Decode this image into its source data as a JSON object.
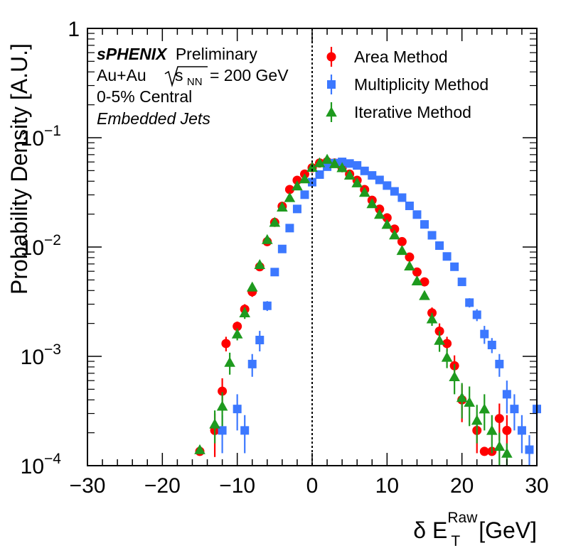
{
  "chart_data": {
    "type": "scatter",
    "xlabel": "δ E_T^Raw [GeV]",
    "xlabel_parts": {
      "prefix": "δ E",
      "sub": "T",
      "sup": "Raw",
      "suffix": "[GeV]"
    },
    "ylabel": "Probability Density [A.U.]",
    "xlim": [
      -30,
      30
    ],
    "ylim": [
      0.0001,
      1
    ],
    "yscale": "log",
    "grid": false,
    "legend_position": "top-right",
    "x_ticks": [
      "−30",
      "−20",
      "−10",
      "0",
      "10",
      "20",
      "30"
    ],
    "y_ticks": [
      {
        "value": 1,
        "base": "1",
        "exp": ""
      },
      {
        "value": 0.1,
        "base": "10",
        "exp": "−1"
      },
      {
        "value": 0.01,
        "base": "10",
        "exp": "−2"
      },
      {
        "value": 0.001,
        "base": "10",
        "exp": "−3"
      },
      {
        "value": 0.0001,
        "base": "10",
        "exp": "−4"
      }
    ],
    "reference_line_x": 0,
    "annotations": {
      "experiment": "sPHENIX",
      "status": "Preliminary",
      "system_prefix": "Au+Au",
      "energy_s": "s",
      "energy_sub": "NN",
      "energy_value": "= 200 GeV",
      "centrality": "0-5% Central",
      "sample": "Embedded Jets"
    },
    "series": [
      {
        "name": "Area Method",
        "color": "#ff0000",
        "marker": "circle",
        "points": [
          {
            "x": -15,
            "y": 0.000135,
            "err": 1e-05
          },
          {
            "x": -13,
            "y": 0.00021,
            "err": 9e-05
          },
          {
            "x": -12,
            "y": 0.00048,
            "err": 0.00015
          },
          {
            "x": -11.5,
            "y": 0.00131,
            "err": 0.0002
          },
          {
            "x": -10,
            "y": 0.00188,
            "err": 0.0002
          },
          {
            "x": -9,
            "y": 0.0027,
            "err": 0.0003
          },
          {
            "x": -8,
            "y": 0.0039,
            "err": 0.0004
          },
          {
            "x": -7,
            "y": 0.0066,
            "err": 0.0005
          },
          {
            "x": -6,
            "y": 0.0112,
            "err": 0.0005
          },
          {
            "x": -5,
            "y": 0.0168,
            "err": 0.0006
          },
          {
            "x": -4,
            "y": 0.0236,
            "err": 0.0007
          },
          {
            "x": -3,
            "y": 0.0336,
            "err": 0.0008
          },
          {
            "x": -2,
            "y": 0.0408,
            "err": 0.0009
          },
          {
            "x": -1,
            "y": 0.0465,
            "err": 0.0009
          },
          {
            "x": 0,
            "y": 0.0531,
            "err": 0.001
          },
          {
            "x": 1,
            "y": 0.0587,
            "err": 0.001
          },
          {
            "x": 2,
            "y": 0.0604,
            "err": 0.001
          },
          {
            "x": 3,
            "y": 0.0587,
            "err": 0.001
          },
          {
            "x": 4,
            "y": 0.0531,
            "err": 0.001
          },
          {
            "x": 5,
            "y": 0.0465,
            "err": 0.0009
          },
          {
            "x": 6,
            "y": 0.0408,
            "err": 0.0009
          },
          {
            "x": 7,
            "y": 0.0336,
            "err": 0.0008
          },
          {
            "x": 8,
            "y": 0.0268,
            "err": 0.0007
          },
          {
            "x": 9,
            "y": 0.0222,
            "err": 0.0007
          },
          {
            "x": 10,
            "y": 0.0185,
            "err": 0.0006
          },
          {
            "x": 11,
            "y": 0.0146,
            "err": 0.0006
          },
          {
            "x": 12,
            "y": 0.0112,
            "err": 0.0005
          },
          {
            "x": 13,
            "y": 0.0081,
            "err": 0.0005
          },
          {
            "x": 14,
            "y": 0.0059,
            "err": 0.0004
          },
          {
            "x": 15,
            "y": 0.0048,
            "err": 0.0004
          },
          {
            "x": 16,
            "y": 0.0025,
            "err": 0.0003
          },
          {
            "x": 17,
            "y": 0.0017,
            "err": 0.0003
          },
          {
            "x": 18,
            "y": 0.00131,
            "err": 0.0002
          },
          {
            "x": 19,
            "y": 0.00082,
            "err": 0.0002
          },
          {
            "x": 20,
            "y": 0.0004,
            "err": 0.00015
          },
          {
            "x": 22,
            "y": 0.00021,
            "err": 8e-05
          },
          {
            "x": 23,
            "y": 0.000135,
            "err": 1e-05
          },
          {
            "x": 24,
            "y": 0.000135,
            "err": 1e-05
          },
          {
            "x": 25,
            "y": 0.00027,
            "err": 0.0001
          },
          {
            "x": 26,
            "y": 0.00021,
            "err": 8e-05
          }
        ]
      },
      {
        "name": "Multiplicity Method",
        "color": "#3c78ff",
        "marker": "square",
        "points": [
          {
            "x": -12,
            "y": 0.00021,
            "err": 8e-05
          },
          {
            "x": -10,
            "y": 0.00033,
            "err": 0.00012
          },
          {
            "x": -9,
            "y": 0.00021,
            "err": 8e-05
          },
          {
            "x": -8,
            "y": 0.00085,
            "err": 0.0002
          },
          {
            "x": -7,
            "y": 0.00141,
            "err": 0.0003
          },
          {
            "x": -6,
            "y": 0.0029,
            "err": 0.0003
          },
          {
            "x": -5,
            "y": 0.0059,
            "err": 0.0004
          },
          {
            "x": -4,
            "y": 0.0096,
            "err": 0.0005
          },
          {
            "x": -3,
            "y": 0.0149,
            "err": 0.0006
          },
          {
            "x": -2,
            "y": 0.0223,
            "err": 0.0007
          },
          {
            "x": -1,
            "y": 0.0301,
            "err": 0.0008
          },
          {
            "x": 0,
            "y": 0.0392,
            "err": 0.0009
          },
          {
            "x": 1,
            "y": 0.046,
            "err": 0.0009
          },
          {
            "x": 2,
            "y": 0.0543,
            "err": 0.001
          },
          {
            "x": 3,
            "y": 0.0586,
            "err": 0.001
          },
          {
            "x": 4,
            "y": 0.0601,
            "err": 0.001
          },
          {
            "x": 5,
            "y": 0.0581,
            "err": 0.001
          },
          {
            "x": 6,
            "y": 0.0558,
            "err": 0.001
          },
          {
            "x": 7,
            "y": 0.0497,
            "err": 0.0009
          },
          {
            "x": 8,
            "y": 0.0452,
            "err": 0.0009
          },
          {
            "x": 9,
            "y": 0.0411,
            "err": 0.0009
          },
          {
            "x": 10,
            "y": 0.0365,
            "err": 0.0008
          },
          {
            "x": 11,
            "y": 0.0323,
            "err": 0.0008
          },
          {
            "x": 12,
            "y": 0.0283,
            "err": 0.0007
          },
          {
            "x": 13,
            "y": 0.0238,
            "err": 0.0007
          },
          {
            "x": 14,
            "y": 0.0198,
            "err": 0.0006
          },
          {
            "x": 15,
            "y": 0.0161,
            "err": 0.0006
          },
          {
            "x": 16,
            "y": 0.0128,
            "err": 0.0005
          },
          {
            "x": 17,
            "y": 0.0103,
            "err": 0.0005
          },
          {
            "x": 18,
            "y": 0.0082,
            "err": 0.0005
          },
          {
            "x": 19,
            "y": 0.0066,
            "err": 0.0004
          },
          {
            "x": 20,
            "y": 0.0048,
            "err": 0.0004
          },
          {
            "x": 21,
            "y": 0.0031,
            "err": 0.0003
          },
          {
            "x": 22,
            "y": 0.0024,
            "err": 0.0003
          },
          {
            "x": 23,
            "y": 0.0016,
            "err": 0.0003
          },
          {
            "x": 24,
            "y": 0.00127,
            "err": 0.0002
          },
          {
            "x": 25,
            "y": 0.00085,
            "err": 0.0002
          },
          {
            "x": 26,
            "y": 0.00045,
            "err": 0.00015
          },
          {
            "x": 27,
            "y": 0.00033,
            "err": 0.00012
          },
          {
            "x": 28,
            "y": 0.00021,
            "err": 8e-05
          },
          {
            "x": 29,
            "y": 0.00014,
            "err": 5e-05
          },
          {
            "x": 30,
            "y": 0.00033,
            "err": 0.00012
          }
        ]
      },
      {
        "name": "Iterative Method",
        "color": "#1e9a1e",
        "marker": "triangle",
        "points": [
          {
            "x": -15,
            "y": 0.00014,
            "err": 1e-05
          },
          {
            "x": -13,
            "y": 0.00024,
            "err": 8e-05
          },
          {
            "x": -12,
            "y": 0.00035,
            "err": 0.00012
          },
          {
            "x": -11,
            "y": 0.00088,
            "err": 0.0002
          },
          {
            "x": -10,
            "y": 0.0016,
            "err": 0.0002
          },
          {
            "x": -9,
            "y": 0.0025,
            "err": 0.0003
          },
          {
            "x": -8,
            "y": 0.0043,
            "err": 0.0003
          },
          {
            "x": -7,
            "y": 0.0069,
            "err": 0.0004
          },
          {
            "x": -6,
            "y": 0.0117,
            "err": 0.0005
          },
          {
            "x": -5,
            "y": 0.0168,
            "err": 0.0006
          },
          {
            "x": -4,
            "y": 0.0232,
            "err": 0.0007
          },
          {
            "x": -3,
            "y": 0.0283,
            "err": 0.0008
          },
          {
            "x": -2,
            "y": 0.0362,
            "err": 0.0008
          },
          {
            "x": -1,
            "y": 0.042,
            "err": 0.0009
          },
          {
            "x": 0,
            "y": 0.0536,
            "err": 0.001
          },
          {
            "x": 1,
            "y": 0.0589,
            "err": 0.001
          },
          {
            "x": 2,
            "y": 0.0634,
            "err": 0.001
          },
          {
            "x": 3,
            "y": 0.0578,
            "err": 0.001
          },
          {
            "x": 4,
            "y": 0.0532,
            "err": 0.001
          },
          {
            "x": 5,
            "y": 0.0454,
            "err": 0.0009
          },
          {
            "x": 6,
            "y": 0.0386,
            "err": 0.0009
          },
          {
            "x": 7,
            "y": 0.0316,
            "err": 0.0008
          },
          {
            "x": 8,
            "y": 0.0249,
            "err": 0.0007
          },
          {
            "x": 9,
            "y": 0.0199,
            "err": 0.0006
          },
          {
            "x": 10,
            "y": 0.0161,
            "err": 0.0006
          },
          {
            "x": 11,
            "y": 0.0129,
            "err": 0.0005
          },
          {
            "x": 12,
            "y": 0.0093,
            "err": 0.0005
          },
          {
            "x": 13,
            "y": 0.0067,
            "err": 0.0004
          },
          {
            "x": 14,
            "y": 0.0049,
            "err": 0.0004
          },
          {
            "x": 15,
            "y": 0.0036,
            "err": 0.0003
          },
          {
            "x": 16,
            "y": 0.0022,
            "err": 0.0003
          },
          {
            "x": 17,
            "y": 0.0014,
            "err": 0.0003
          },
          {
            "x": 18,
            "y": 0.00098,
            "err": 0.0002
          },
          {
            "x": 19,
            "y": 0.00065,
            "err": 0.0002
          },
          {
            "x": 20,
            "y": 0.00042,
            "err": 0.00015
          },
          {
            "x": 21,
            "y": 0.00038,
            "err": 0.00015
          },
          {
            "x": 22,
            "y": 0.00026,
            "err": 0.0001
          },
          {
            "x": 23,
            "y": 0.00033,
            "err": 0.00012
          },
          {
            "x": 24,
            "y": 0.00021,
            "err": 8e-05
          },
          {
            "x": 25,
            "y": 0.00015,
            "err": 5e-05
          },
          {
            "x": 26,
            "y": 0.00013,
            "err": 3e-05
          }
        ]
      }
    ]
  }
}
